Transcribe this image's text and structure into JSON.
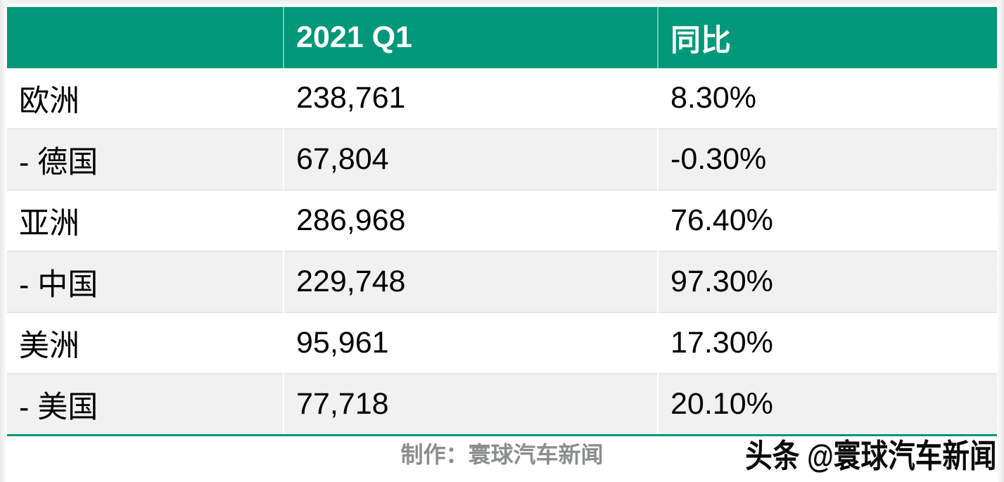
{
  "chart_data": {
    "type": "table",
    "columns": [
      "",
      "2021 Q1",
      "同比"
    ],
    "rows": [
      {
        "label": "欧洲",
        "value": "238,761",
        "yoy": "8.30%"
      },
      {
        "label": "- 德国",
        "value": "67,804",
        "yoy": "-0.30%"
      },
      {
        "label": "亚洲",
        "value": "286,968",
        "yoy": "76.40%"
      },
      {
        "label": "- 中国",
        "value": "229,748",
        "yoy": "97.30%"
      },
      {
        "label": "美洲",
        "value": "95,961",
        "yoy": "17.30%"
      },
      {
        "label": "- 美国",
        "value": "77,718",
        "yoy": "20.10%"
      }
    ],
    "values_numeric": [
      238761,
      67804,
      286968,
      229748,
      95961,
      77718
    ],
    "yoy_numeric_percent": [
      8.3,
      -0.3,
      76.4,
      97.3,
      17.3,
      20.1
    ],
    "layout": {
      "row_stripes": true,
      "header_position": "top"
    }
  },
  "footer": {
    "credit": "制作：寰球汽车新闻",
    "watermark": "头条 @寰球汽车新闻"
  },
  "colors": {
    "header_bg": "#009878",
    "header_text": "#ffffff",
    "row_stripe_bg": "#f1f1f1",
    "row_divider": "#e8e8e8",
    "bottom_border": "#009878",
    "cell_text": "#000000",
    "credit_text": "#8a8e8b",
    "watermark_text": "#0a0a0a"
  }
}
